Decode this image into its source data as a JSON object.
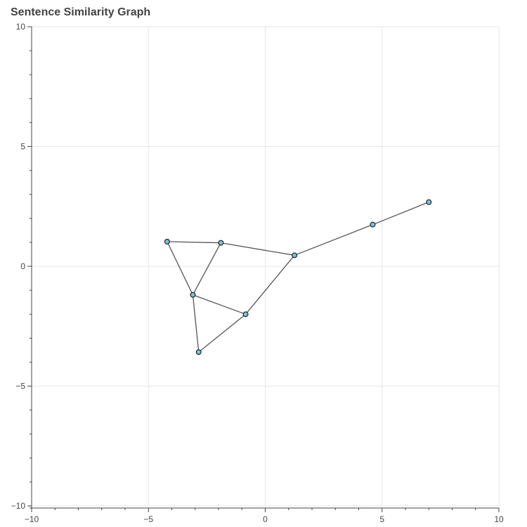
{
  "chart_data": {
    "type": "scatter",
    "title": "Sentence Similarity Graph",
    "xlabel": "",
    "ylabel": "",
    "xlim": [
      -10,
      10
    ],
    "ylim": [
      -10,
      10
    ],
    "x_ticks": [
      -10,
      -5,
      0,
      5,
      10
    ],
    "y_ticks": [
      -10,
      -5,
      0,
      5,
      10
    ],
    "x_tick_labels": [
      "−10",
      "−5",
      "0",
      "5",
      "10"
    ],
    "y_tick_labels": [
      "−10",
      "−5",
      "0",
      "5",
      "10"
    ],
    "grid": true,
    "nodes": [
      {
        "x": -4.2,
        "y": 1.03
      },
      {
        "x": -1.9,
        "y": 0.98
      },
      {
        "x": 1.25,
        "y": 0.46
      },
      {
        "x": 4.6,
        "y": 1.74
      },
      {
        "x": 7.0,
        "y": 2.68
      },
      {
        "x": -3.1,
        "y": -1.19
      },
      {
        "x": -0.84,
        "y": -2.0
      },
      {
        "x": -2.85,
        "y": -3.58
      }
    ],
    "edges": [
      [
        0,
        1
      ],
      [
        1,
        2
      ],
      [
        2,
        3
      ],
      [
        3,
        4
      ],
      [
        0,
        5
      ],
      [
        1,
        5
      ],
      [
        5,
        6
      ],
      [
        5,
        7
      ],
      [
        7,
        6
      ],
      [
        6,
        2
      ]
    ],
    "colors": {
      "node_fill": "#78c1e0",
      "node_stroke": "#222222",
      "edge": "#555555",
      "grid": "#e6e6e6",
      "axis": "#444444"
    }
  }
}
